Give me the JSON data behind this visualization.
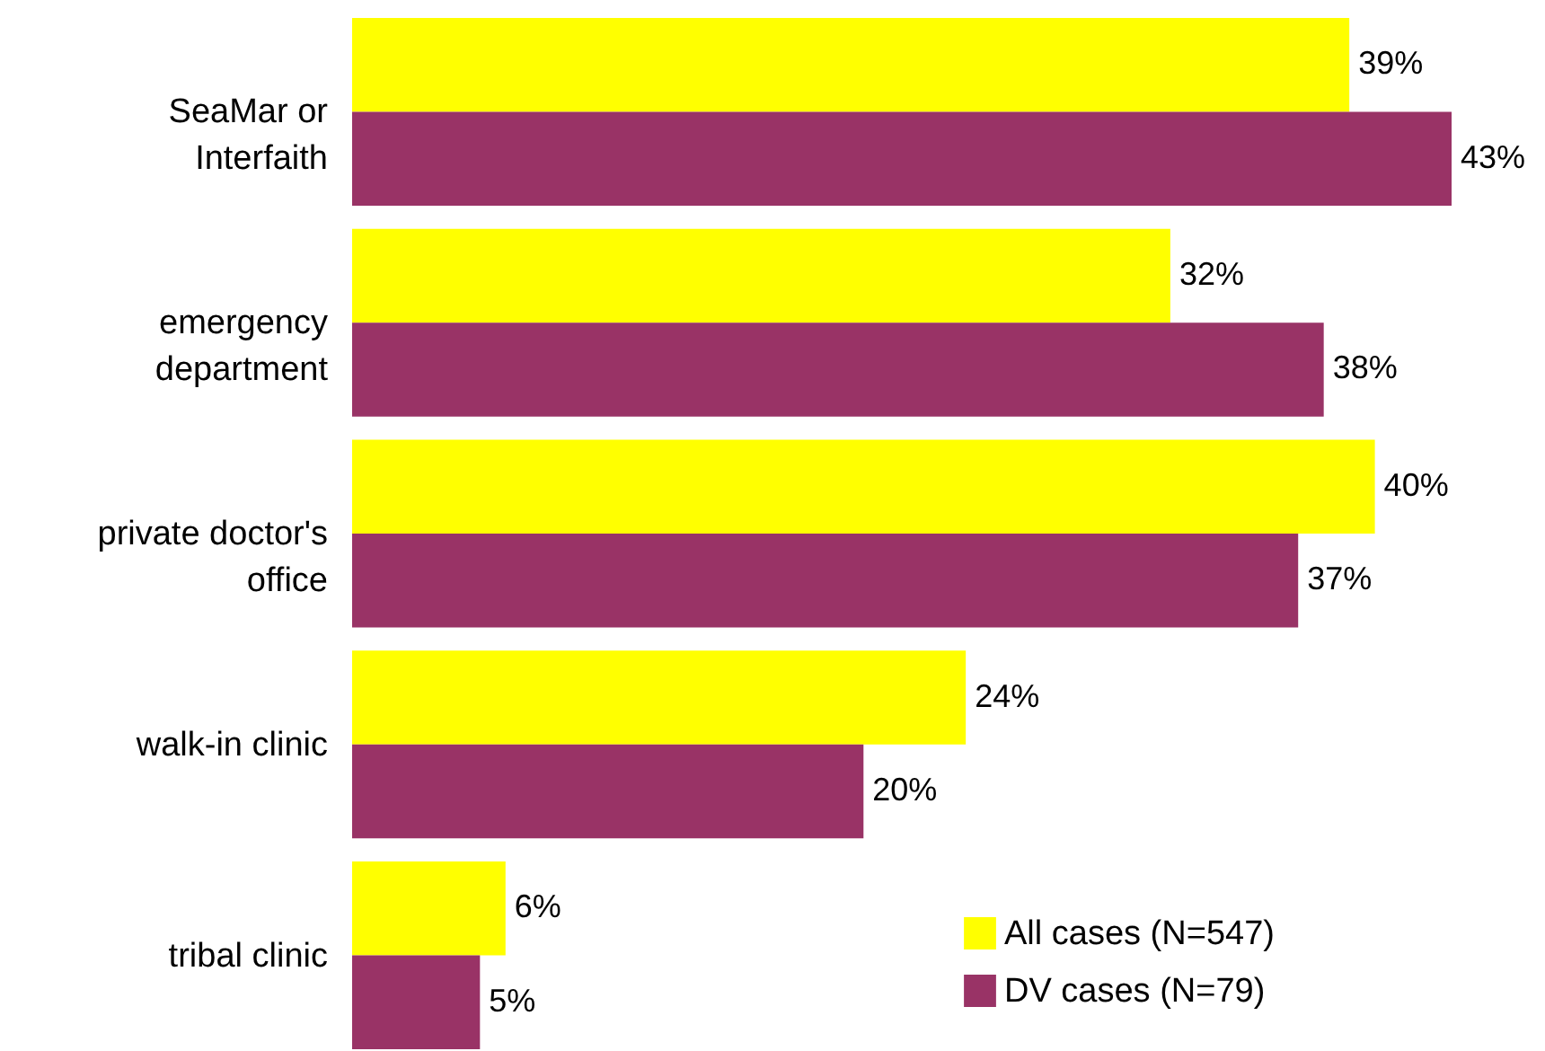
{
  "chart_data": {
    "type": "bar",
    "orientation": "horizontal",
    "categories": [
      "SeaMar or Interfaith",
      "emergency department",
      "private doctor's office",
      "walk-in clinic",
      "tribal clinic"
    ],
    "series": [
      {
        "name": "All cases (N=547)",
        "color": "#ffff00",
        "values": [
          39,
          32,
          40,
          24,
          6
        ],
        "value_labels": [
          "39%",
          "32%",
          "40%",
          "24%",
          "6%"
        ]
      },
      {
        "name": "DV cases (N=79)",
        "color": "#993366",
        "values": [
          43,
          38,
          37,
          20,
          5
        ],
        "value_labels": [
          "43%",
          "38%",
          "37%",
          "20%",
          "5%"
        ]
      }
    ],
    "legend": "bottom right"
  }
}
